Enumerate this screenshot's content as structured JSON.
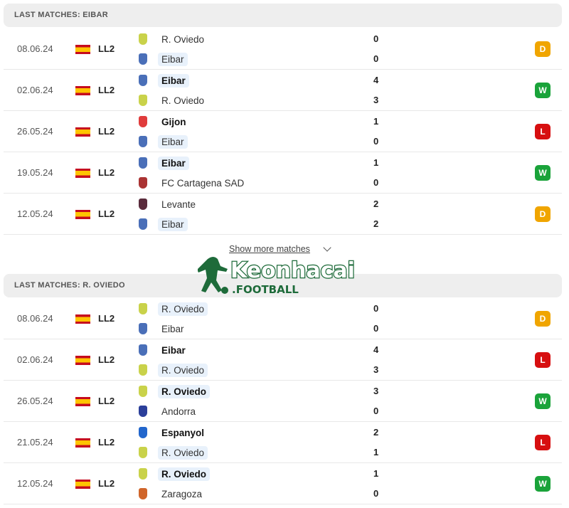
{
  "colors": {
    "D": "#f0a500",
    "W": "#1aa33a",
    "L": "#d70f10"
  },
  "crests": {
    "R. Oviedo": "#c9d24a",
    "Eibar": "#4a6fb8",
    "Gijon": "#e03c3c",
    "FC Cartagena SAD": "#a33",
    "Levante": "#5a2b3c",
    "Andorra": "#2b3f9a",
    "Espanyol": "#2266cc",
    "Zaragoza": "#d0652a"
  },
  "sections": [
    {
      "title": "LAST MATCHES: EIBAR",
      "matches": [
        {
          "date": "08.06.24",
          "league": "LL2",
          "home": "R. Oviedo",
          "away": "Eibar",
          "hs": "0",
          "as": "0",
          "result": "D",
          "winner": "",
          "hl": "away"
        },
        {
          "date": "02.06.24",
          "league": "LL2",
          "home": "Eibar",
          "away": "R. Oviedo",
          "hs": "4",
          "as": "3",
          "result": "W",
          "winner": "home",
          "hl": "home"
        },
        {
          "date": "26.05.24",
          "league": "LL2",
          "home": "Gijon",
          "away": "Eibar",
          "hs": "1",
          "as": "0",
          "result": "L",
          "winner": "home",
          "hl": "away"
        },
        {
          "date": "19.05.24",
          "league": "LL2",
          "home": "Eibar",
          "away": "FC Cartagena SAD",
          "hs": "1",
          "as": "0",
          "result": "W",
          "winner": "home",
          "hl": "home"
        },
        {
          "date": "12.05.24",
          "league": "LL2",
          "home": "Levante",
          "away": "Eibar",
          "hs": "2",
          "as": "2",
          "result": "D",
          "winner": "",
          "hl": "away"
        }
      ]
    },
    {
      "title": "LAST MATCHES: R. OVIEDO",
      "matches": [
        {
          "date": "08.06.24",
          "league": "LL2",
          "home": "R. Oviedo",
          "away": "Eibar",
          "hs": "0",
          "as": "0",
          "result": "D",
          "winner": "",
          "hl": "home"
        },
        {
          "date": "02.06.24",
          "league": "LL2",
          "home": "Eibar",
          "away": "R. Oviedo",
          "hs": "4",
          "as": "3",
          "result": "L",
          "winner": "home",
          "hl": "away"
        },
        {
          "date": "26.05.24",
          "league": "LL2",
          "home": "R. Oviedo",
          "away": "Andorra",
          "hs": "3",
          "as": "0",
          "result": "W",
          "winner": "home",
          "hl": "home"
        },
        {
          "date": "21.05.24",
          "league": "LL2",
          "home": "Espanyol",
          "away": "R. Oviedo",
          "hs": "2",
          "as": "1",
          "result": "L",
          "winner": "home",
          "hl": "away"
        },
        {
          "date": "12.05.24",
          "league": "LL2",
          "home": "R. Oviedo",
          "away": "Zaragoza",
          "hs": "1",
          "as": "0",
          "result": "W",
          "winner": "home",
          "hl": "home"
        }
      ]
    }
  ],
  "show_more": "Show more matches",
  "watermark": {
    "brand": "Keonhacai",
    "sub": ".FOOTBALL"
  }
}
